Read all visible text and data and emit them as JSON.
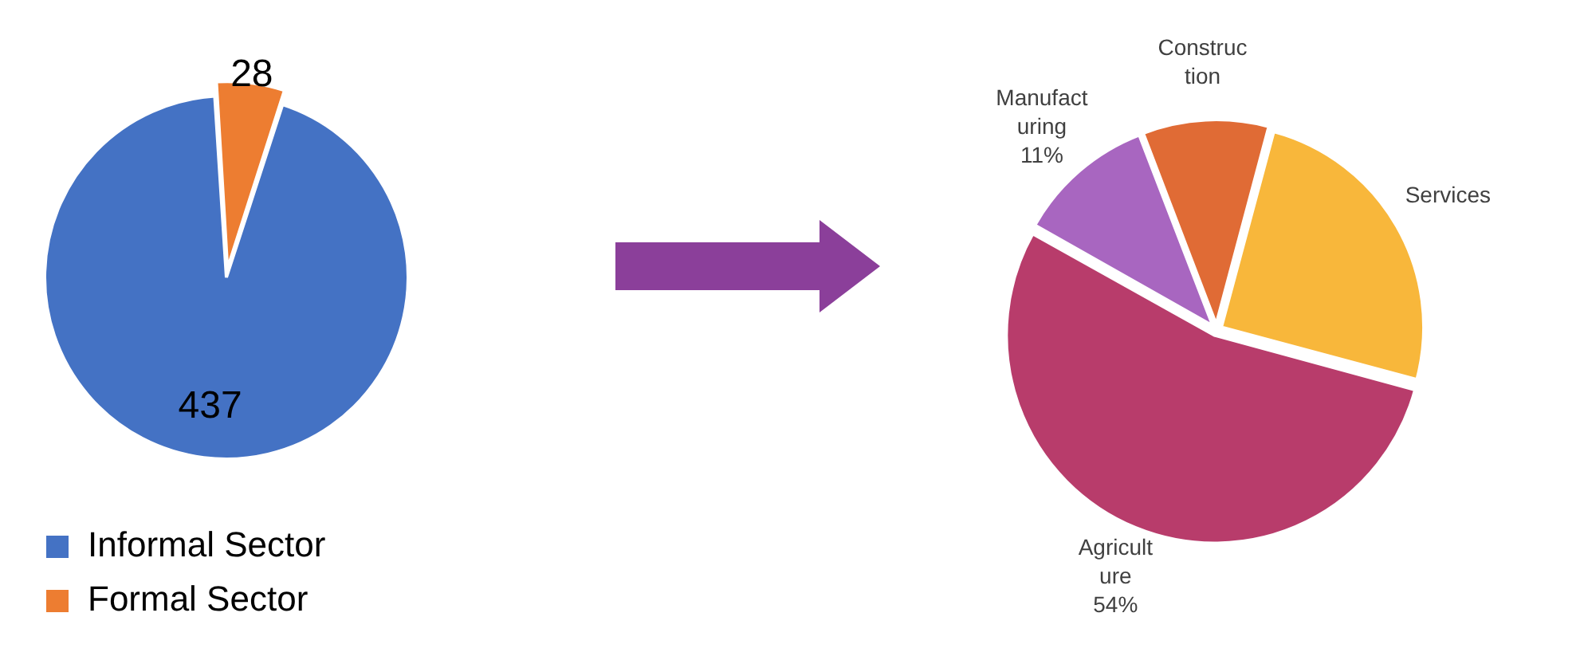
{
  "chart_data": [
    {
      "type": "pie",
      "categories": [
        "Informal Sector",
        "Formal Sector"
      ],
      "values": [
        437,
        28
      ],
      "colors": [
        "#4472c4",
        "#ed7d31"
      ],
      "data_labels": true,
      "legend": "bottom"
    },
    {
      "type": "pie",
      "categories": [
        "Services",
        "Agriculture",
        "Manufacturing",
        "Construction"
      ],
      "values": [
        25,
        54,
        11,
        10
      ],
      "colors": [
        "#f8b73b",
        "#b83c6b",
        "#a866c0",
        "#e06b35"
      ],
      "value_labels": [
        null,
        "54%",
        "11%",
        null
      ],
      "legend": false
    }
  ]
}
